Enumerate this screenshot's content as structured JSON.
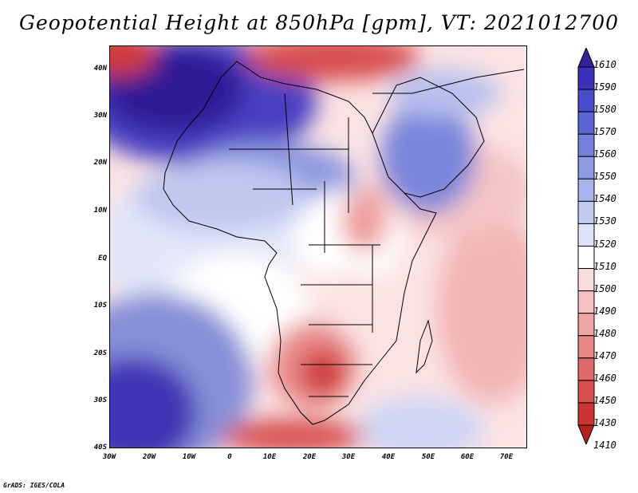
{
  "title": "Geopotential Height at 850hPa [gpm], VT: 2021012700",
  "credit": "GrADS: IGES/COLA",
  "lat_labels": [
    "40N",
    "30N",
    "20N",
    "10N",
    "EQ",
    "10S",
    "20S",
    "30S",
    "40S"
  ],
  "lon_labels": [
    "30W",
    "20W",
    "10W",
    "0",
    "10E",
    "20E",
    "30E",
    "40E",
    "50E",
    "60E",
    "70E"
  ],
  "colorbar": {
    "labels": [
      "1610",
      "1590",
      "1580",
      "1570",
      "1560",
      "1550",
      "1540",
      "1530",
      "1520",
      "1510",
      "1500",
      "1490",
      "1480",
      "1470",
      "1460",
      "1450",
      "1430",
      "1410"
    ],
    "colors": [
      "#3a1f9a",
      "#3c2fb8",
      "#4a4ccc",
      "#5c66d2",
      "#7680dc",
      "#8d9ae4",
      "#a9b4ec",
      "#c3cbf2",
      "#dfe3f8",
      "#ffffff",
      "#fadede",
      "#f5c0c0",
      "#eea5a5",
      "#e78787",
      "#df6a6a",
      "#d84f4f",
      "#cd3434",
      "#b81f1f"
    ]
  }
}
